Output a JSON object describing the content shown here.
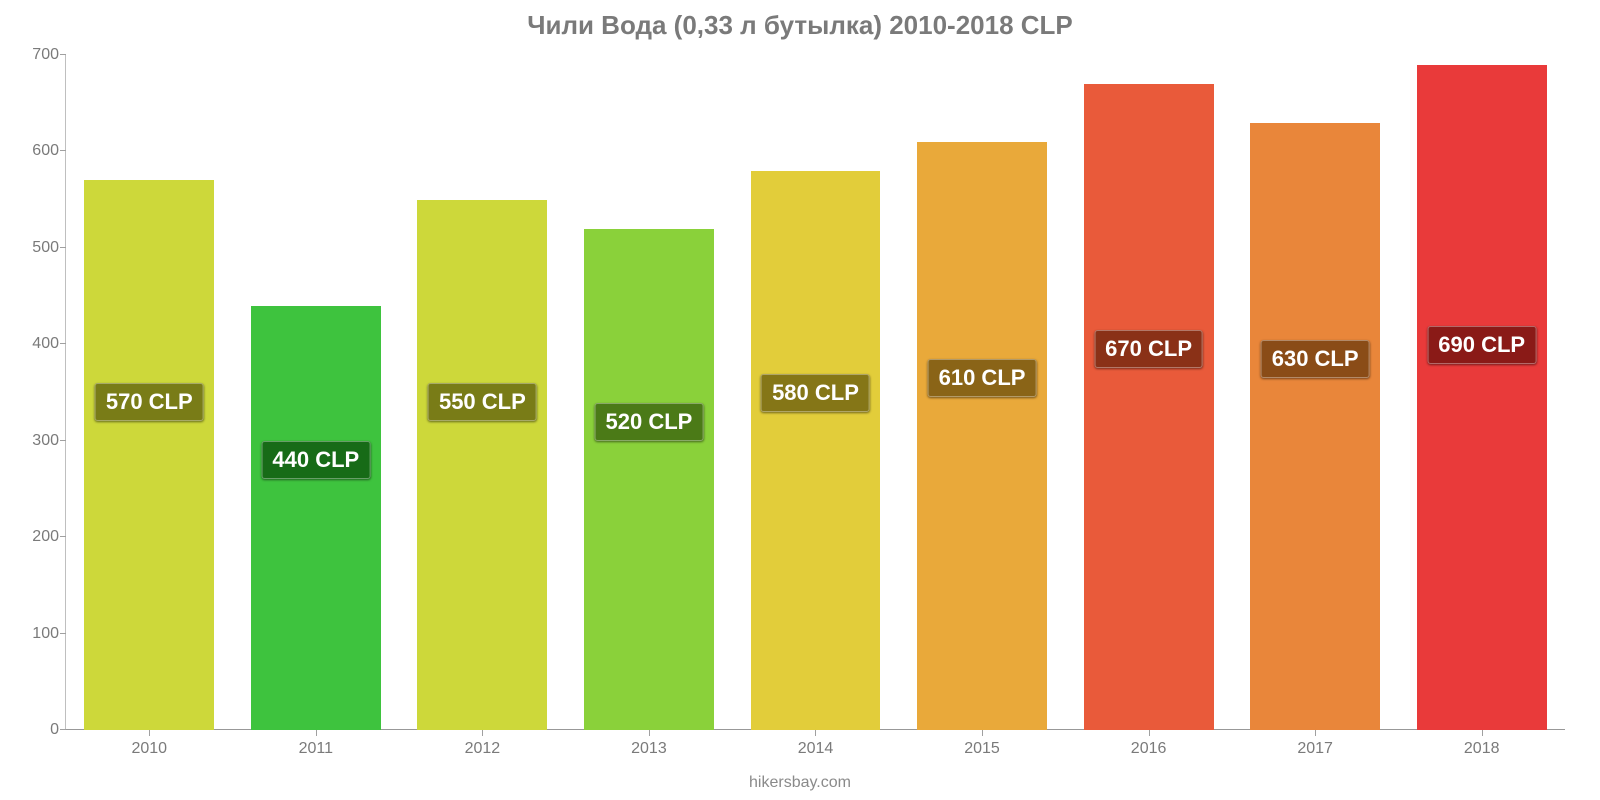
{
  "chart": {
    "type": "bar",
    "title": "Чили Вода (0,33 л бутылка) 2010-2018 CLP",
    "title_fontsize": 26,
    "title_color": "#7a7a7a",
    "attribution": "hikersbay.com",
    "background_color": "#ffffff",
    "axis_color": "#bfbfbf",
    "tick_label_color": "#7a7a7a",
    "tick_label_fontsize": 16,
    "ylim": [
      0,
      700
    ],
    "ytick_step": 100,
    "yticks": [
      0,
      100,
      200,
      300,
      400,
      500,
      600,
      700
    ],
    "bar_width_ratio": 0.78,
    "label_fontsize": 22,
    "label_text_color": "#ffffff",
    "categories": [
      "2010",
      "2011",
      "2012",
      "2013",
      "2014",
      "2015",
      "2016",
      "2017",
      "2018"
    ],
    "values": [
      570,
      440,
      550,
      520,
      580,
      610,
      670,
      630,
      690
    ],
    "value_labels": [
      "570 CLP",
      "440 CLP",
      "550 CLP",
      "520 CLP",
      "580 CLP",
      "610 CLP",
      "670 CLP",
      "630 CLP",
      "690 CLP"
    ],
    "bar_colors": [
      "#cdd83a",
      "#3ec33e",
      "#cdd83a",
      "#8ad13a",
      "#e2cd3a",
      "#e9a93a",
      "#e95a3a",
      "#e9863a",
      "#e93a3a"
    ],
    "label_bg_colors": [
      "#797c17",
      "#176b17",
      "#797c17",
      "#4b7a17",
      "#857617",
      "#8a6417",
      "#8a3117",
      "#8a4c17",
      "#8a1a17"
    ],
    "label_y_values": [
      320,
      260,
      320,
      300,
      330,
      345,
      375,
      365,
      380
    ]
  }
}
